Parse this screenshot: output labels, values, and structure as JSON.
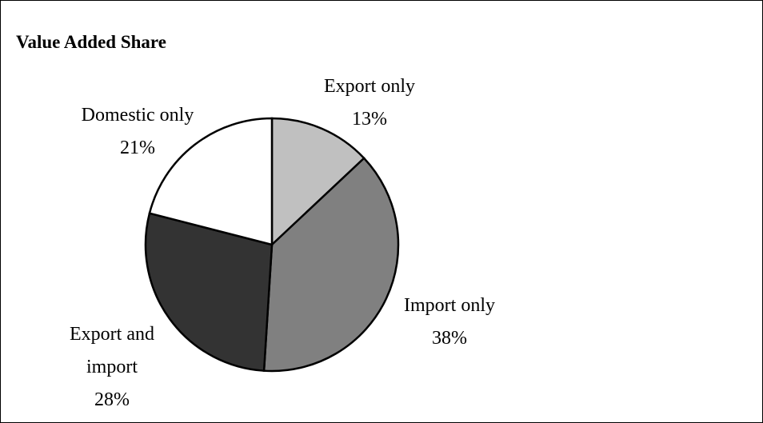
{
  "chart_data": {
    "type": "pie",
    "title": "Value Added Share",
    "categories": [
      "Export only",
      "Import only",
      "Export and import",
      "Domestic only"
    ],
    "values": [
      13,
      38,
      28,
      21
    ],
    "value_labels": [
      "13%",
      "38%",
      "28%",
      "21%"
    ],
    "colors": [
      "#c0c0c0",
      "#808080",
      "#333333",
      "#ffffff"
    ]
  }
}
